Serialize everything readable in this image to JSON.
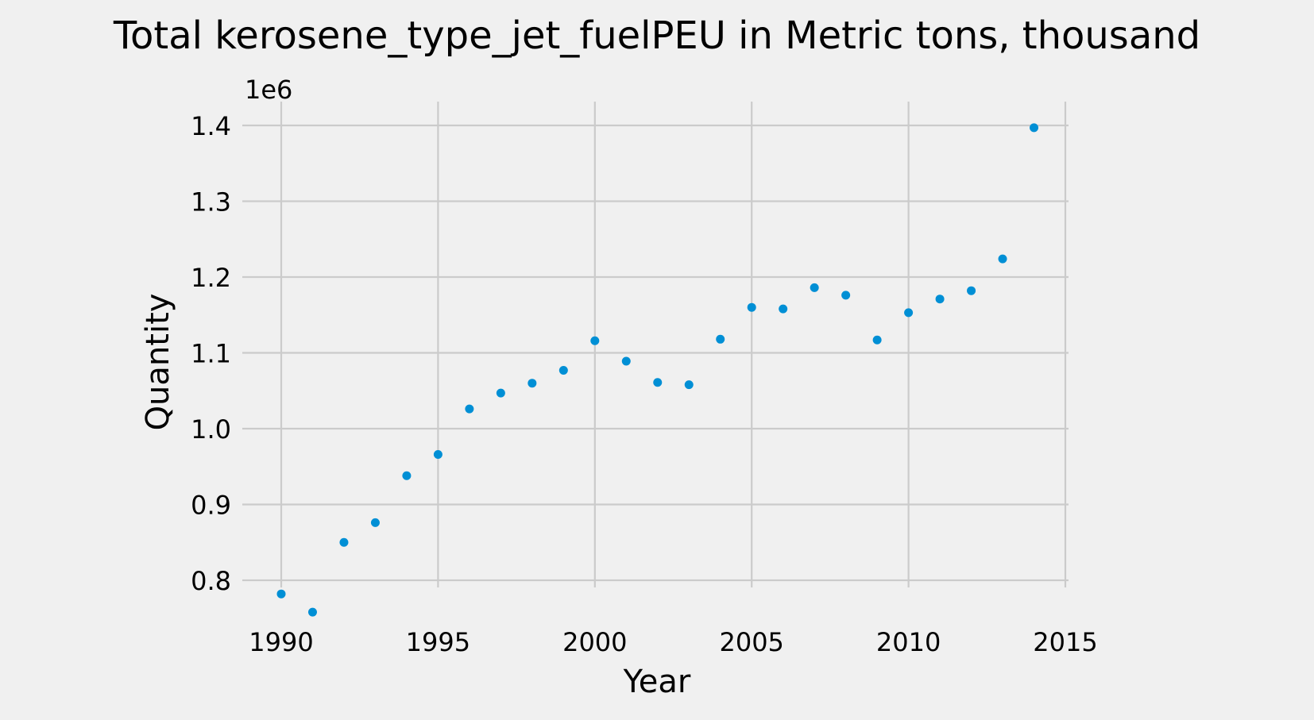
{
  "chart_data": {
    "type": "scatter",
    "title": "Total kerosene_type_jet_fuelPEU in Metric tons,  thousand",
    "xlabel": "Year",
    "ylabel": "Quantity",
    "y_offset_label": "1e6",
    "xlim": [
      1989.2,
      2015.0
    ],
    "ylim": [
      0.745,
      1.425
    ],
    "x_ticks": [
      1990,
      1995,
      2000,
      2005,
      2010,
      2015
    ],
    "y_ticks": [
      0.8,
      0.9,
      1.0,
      1.1,
      1.2,
      1.3,
      1.4
    ],
    "x_tick_labels": [
      "1990",
      "1995",
      "2000",
      "2005",
      "2010",
      "2015"
    ],
    "y_tick_labels": [
      "0.8",
      "0.9",
      "1.0",
      "1.1",
      "1.2",
      "1.3",
      "1.4"
    ],
    "grid": true,
    "y_scale_factor": 1000000,
    "x": [
      1990,
      1991,
      1992,
      1993,
      1994,
      1995,
      1996,
      1997,
      1998,
      1999,
      2000,
      2001,
      2002,
      2003,
      2004,
      2005,
      2006,
      2007,
      2008,
      2009,
      2010,
      2011,
      2012,
      2013,
      2014
    ],
    "y": [
      782000,
      758000,
      850000,
      876000,
      938000,
      966000,
      1026000,
      1047000,
      1060000,
      1077000,
      1116000,
      1089000,
      1061000,
      1058000,
      1118000,
      1160000,
      1158000,
      1186000,
      1176000,
      1117000,
      1153000,
      1171000,
      1182000,
      1224000,
      1397000
    ]
  },
  "colors": {
    "background": "#f0f0f0",
    "grid": "#cbcbcb",
    "marker": "#008fd5",
    "text": "#000000"
  }
}
